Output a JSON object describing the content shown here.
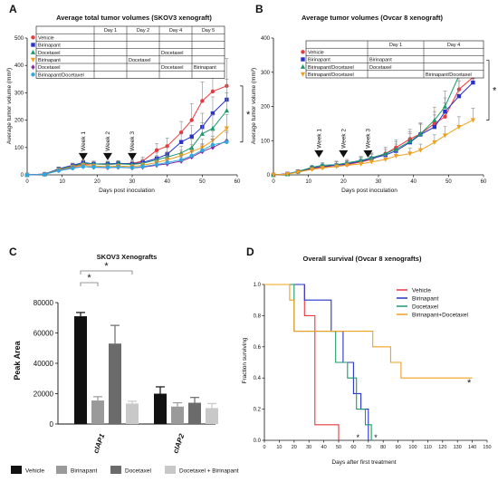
{
  "figure": {
    "panel_labels": [
      "A",
      "B",
      "C",
      "D"
    ],
    "bottom_legend": [
      {
        "label": "Vehicle",
        "color": "#111111"
      },
      {
        "label": "Birinapant",
        "color": "#9a9a9a"
      },
      {
        "label": "Docetaxel",
        "color": "#6b6b6b"
      },
      {
        "label": "Docetaxel + Birinapant",
        "color": "#c8c8c8"
      }
    ]
  },
  "chart_data": [
    {
      "id": "A",
      "type": "line",
      "title": "Average total tumor volumes (SKOV3 xenograft)",
      "xlabel": "Days post inoculation",
      "ylabel": "Average tumor volume (mm³)",
      "xlim": [
        0,
        60
      ],
      "ylim": [
        0,
        500
      ],
      "xticks": [
        0,
        10,
        20,
        30,
        40,
        50,
        60
      ],
      "yticks": [
        0,
        100,
        200,
        300,
        400,
        500
      ],
      "weeks": [
        {
          "label": "Week 1",
          "x": 16
        },
        {
          "label": "Week 2",
          "x": 23
        },
        {
          "label": "Week 3",
          "x": 30
        }
      ],
      "significance": "*",
      "x": [
        0,
        5,
        9,
        13,
        16,
        19,
        23,
        26,
        30,
        33,
        37,
        40,
        44,
        47,
        50,
        53,
        57
      ],
      "series": [
        {
          "name": "Vehicle",
          "color": "#e8393f",
          "marker": "circle",
          "values": [
            0,
            3,
            20,
            30,
            38,
            40,
            38,
            40,
            42,
            50,
            90,
            105,
            155,
            200,
            270,
            305,
            325
          ],
          "errors": [
            0,
            2,
            5,
            8,
            10,
            10,
            10,
            10,
            12,
            15,
            25,
            30,
            40,
            60,
            70,
            90,
            100
          ]
        },
        {
          "name": "Birinapant",
          "color": "#2832c8",
          "marker": "square",
          "values": [
            0,
            3,
            22,
            35,
            45,
            40,
            40,
            42,
            40,
            45,
            60,
            75,
            120,
            140,
            175,
            225,
            275
          ],
          "errors": [
            0,
            2,
            5,
            8,
            10,
            10,
            10,
            10,
            10,
            12,
            20,
            25,
            30,
            40,
            50,
            60,
            75
          ]
        },
        {
          "name": "Docetaxel",
          "color": "#1a9a6a",
          "marker": "triangle",
          "values": [
            0,
            2,
            20,
            32,
            42,
            40,
            38,
            40,
            38,
            42,
            55,
            65,
            80,
            100,
            150,
            170,
            235
          ],
          "errors": [
            0,
            2,
            5,
            8,
            10,
            10,
            10,
            10,
            10,
            12,
            15,
            20,
            25,
            30,
            40,
            50,
            65
          ]
        },
        {
          "name": "Birinapant",
          "color": "#f0a020",
          "marker": "triangle-down",
          "values": [
            0,
            2,
            18,
            28,
            35,
            32,
            30,
            32,
            30,
            35,
            45,
            55,
            70,
            85,
            100,
            125,
            170
          ],
          "errors": [
            0,
            2,
            5,
            7,
            8,
            8,
            8,
            8,
            8,
            10,
            12,
            15,
            20,
            25,
            30,
            35,
            50
          ]
        },
        {
          "name": "Docetaxel",
          "color": "#8a2aa0",
          "marker": "diamond",
          "values": [
            0,
            2,
            16,
            25,
            30,
            28,
            26,
            28,
            25,
            28,
            35,
            40,
            50,
            65,
            85,
            100,
            125
          ],
          "errors": [
            0,
            1,
            4,
            6,
            7,
            7,
            7,
            7,
            7,
            8,
            10,
            12,
            15,
            20,
            25,
            30,
            35
          ]
        },
        {
          "name": "Birinapant/Docetaxel",
          "color": "#2ea8e0",
          "marker": "circle",
          "values": [
            0,
            2,
            15,
            24,
            30,
            28,
            27,
            28,
            26,
            30,
            38,
            45,
            55,
            70,
            90,
            110,
            120
          ],
          "errors": [
            0,
            1,
            4,
            6,
            7,
            7,
            7,
            7,
            7,
            8,
            10,
            12,
            15,
            20,
            25,
            30,
            35
          ]
        }
      ],
      "schedule": {
        "headers": [
          "",
          "Day 1",
          "Day 2",
          "Day 4",
          "Day 5"
        ],
        "rows": [
          [
            "Vehicle",
            "",
            "",
            "",
            ""
          ],
          [
            "Birinapant",
            "",
            "",
            "",
            ""
          ],
          [
            "Docetaxel",
            "",
            "",
            "Docetaxel",
            ""
          ],
          [
            "Birinapant",
            "",
            "Docetaxel",
            "",
            ""
          ],
          [
            "Docetaxel",
            "",
            "",
            "Docetaxel",
            "Birinapant"
          ],
          [
            "Birinapant/Docetaxel",
            "",
            "",
            "",
            ""
          ]
        ]
      }
    },
    {
      "id": "B",
      "type": "line",
      "title": "Average tumor volumes (Ovcar 8 xenograft)",
      "xlabel": "Days post inoculation",
      "ylabel": "Average tumor volume (mm³)",
      "xlim": [
        0,
        60
      ],
      "ylim": [
        0,
        400
      ],
      "xticks": [
        0,
        10,
        20,
        30,
        40,
        50,
        60
      ],
      "yticks": [
        0,
        100,
        200,
        300,
        400
      ],
      "weeks": [
        {
          "label": "Week 1",
          "x": 13
        },
        {
          "label": "Week 2",
          "x": 20
        },
        {
          "label": "Week 3",
          "x": 27
        }
      ],
      "significance": "*",
      "x": [
        0,
        4,
        7,
        11,
        14,
        18,
        21,
        25,
        28,
        32,
        35,
        39,
        42,
        46,
        49,
        53,
        57
      ],
      "series": [
        {
          "name": "Vehicle",
          "color": "#e8393f",
          "marker": "circle",
          "values": [
            0,
            3,
            8,
            18,
            22,
            28,
            30,
            38,
            45,
            62,
            80,
            105,
            120,
            150,
            170,
            250,
            285
          ],
          "errors": [
            0,
            2,
            4,
            6,
            8,
            10,
            10,
            12,
            14,
            18,
            22,
            28,
            30,
            35,
            40,
            50,
            55
          ]
        },
        {
          "name": "Birinapant",
          "color": "#2832c8",
          "marker": "square",
          "values": [
            0,
            3,
            10,
            20,
            25,
            28,
            32,
            40,
            48,
            58,
            70,
            95,
            118,
            140,
            185,
            230,
            270
          ],
          "errors": [
            0,
            2,
            4,
            6,
            8,
            10,
            10,
            12,
            14,
            16,
            20,
            25,
            30,
            35,
            40,
            45,
            55
          ]
        },
        {
          "name": "Birinapant/Docetaxel",
          "color": "#1a9a6a",
          "marker": "triangle",
          "values": [
            0,
            2,
            10,
            22,
            28,
            30,
            35,
            42,
            50,
            62,
            75,
            98,
            120,
            160,
            200,
            290,
            335
          ],
          "errors": [
            0,
            2,
            4,
            6,
            8,
            10,
            10,
            12,
            14,
            18,
            22,
            28,
            32,
            38,
            45,
            60,
            50
          ]
        },
        {
          "name": "Birinapant/Docetaxel",
          "color": "#f0a020",
          "marker": "triangle-down",
          "values": [
            0,
            2,
            8,
            16,
            20,
            24,
            28,
            32,
            38,
            45,
            55,
            62,
            72,
            95,
            115,
            140,
            160
          ],
          "errors": [
            0,
            2,
            4,
            5,
            6,
            8,
            8,
            10,
            10,
            12,
            14,
            16,
            18,
            22,
            26,
            30,
            35
          ]
        }
      ],
      "schedule": {
        "headers": [
          "",
          "Day 1",
          "Day 4"
        ],
        "rows": [
          [
            "Vehicle",
            "",
            ""
          ],
          [
            "Birinapant",
            "Birinapant",
            ""
          ],
          [
            "Birinapant/Docetaxel",
            "Docetaxel",
            ""
          ],
          [
            "Birinapant/Docetaxel",
            "",
            "Birinapant/Docetaxel"
          ]
        ]
      }
    },
    {
      "id": "C",
      "type": "bar",
      "title": "SKOV3 Xenografts",
      "ylabel": "Peak Area",
      "ylim": [
        0,
        80000
      ],
      "yticks": [
        0,
        20000,
        40000,
        60000,
        80000
      ],
      "categories": [
        "cIAP1",
        "cIAP2"
      ],
      "series": [
        {
          "name": "Vehicle",
          "color": "#111111",
          "values": [
            71000,
            20000
          ],
          "errors": [
            2500,
            4500
          ]
        },
        {
          "name": "Birinapant",
          "color": "#9a9a9a",
          "values": [
            15500,
            11500
          ],
          "errors": [
            2500,
            2500
          ]
        },
        {
          "name": "Docetaxel",
          "color": "#6b6b6b",
          "values": [
            53000,
            14000
          ],
          "errors": [
            12000,
            3500
          ]
        },
        {
          "name": "Docetaxel + Birinapant",
          "color": "#c8c8c8",
          "values": [
            13500,
            10500
          ],
          "errors": [
            1500,
            3000
          ]
        }
      ],
      "significance": [
        "*",
        "*"
      ]
    },
    {
      "id": "D",
      "type": "line",
      "title": "Overall survival (Ovcar 8 xenografts)",
      "xlabel": "Days after first treatment",
      "ylabel": "Fraction surviving",
      "xlim": [
        0,
        150
      ],
      "ylim": [
        0,
        1
      ],
      "xticks": [
        0,
        10,
        20,
        30,
        40,
        50,
        60,
        70,
        80,
        90,
        100,
        110,
        120,
        130,
        140,
        150
      ],
      "yticks": [
        0,
        0.2,
        0.4,
        0.6,
        0.8,
        1.0
      ],
      "series": [
        {
          "name": "Vehicle",
          "color": "#e8393f",
          "x": [
            0,
            27,
            27,
            34,
            34,
            50,
            50
          ],
          "values": [
            1,
            1,
            0.8,
            0.8,
            0.1,
            0.1,
            0
          ]
        },
        {
          "name": "Birinapant",
          "color": "#2832c8",
          "x": [
            0,
            27,
            27,
            45,
            45,
            53,
            53,
            60,
            60,
            65,
            65,
            70,
            70
          ],
          "values": [
            1,
            1,
            0.9,
            0.9,
            0.7,
            0.7,
            0.5,
            0.5,
            0.3,
            0.3,
            0.2,
            0.2,
            0
          ]
        },
        {
          "name": "Docetaxel",
          "color": "#1a9a6a",
          "x": [
            0,
            20,
            20,
            48,
            48,
            56,
            56,
            62,
            62,
            68,
            68,
            72,
            72
          ],
          "values": [
            1,
            1,
            0.7,
            0.7,
            0.5,
            0.5,
            0.4,
            0.4,
            0.2,
            0.2,
            0.1,
            0.1,
            0
          ]
        },
        {
          "name": "Birinapant+Docetaxel",
          "color": "#f0a020",
          "x": [
            0,
            17,
            17,
            20,
            20,
            73,
            73,
            85,
            85,
            92,
            92,
            100,
            100,
            140
          ],
          "values": [
            1,
            1,
            0.9,
            0.9,
            0.7,
            0.7,
            0.6,
            0.6,
            0.5,
            0.5,
            0.4,
            0.4,
            0.4,
            0.4
          ]
        }
      ],
      "significance": [
        "*",
        "*",
        "*"
      ]
    }
  ]
}
